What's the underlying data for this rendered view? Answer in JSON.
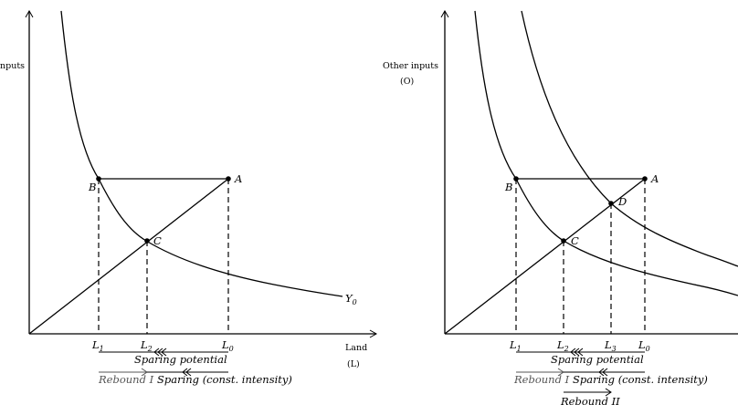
{
  "left_panel": {
    "y_axis_label_partial": "nputs",
    "x_axis_label": "Land",
    "x_axis_symbol": "(L)",
    "curve_label": "Y",
    "curve_label_sub": "0",
    "points": {
      "A": "A",
      "B": "B",
      "C": "C"
    },
    "ticks": [
      {
        "base": "L",
        "sub": "1"
      },
      {
        "base": "L",
        "sub": "2"
      },
      {
        "base": "L",
        "sub": "0"
      }
    ],
    "sparing_potential": "Sparing potential",
    "rebound_1": "Rebound I",
    "sparing_const": "Sparing (const. intensity)"
  },
  "right_panel": {
    "y_axis_label": "Other inputs",
    "y_axis_symbol": "(O)",
    "points": {
      "A": "A",
      "B": "B",
      "C": "C",
      "D": "D"
    },
    "ticks": [
      {
        "base": "L",
        "sub": "1"
      },
      {
        "base": "L",
        "sub": "2"
      },
      {
        "base": "L",
        "sub": "3"
      },
      {
        "base": "L",
        "sub": "0"
      }
    ],
    "sparing_potential": "Sparing potential",
    "rebound_1": "Rebound I",
    "sparing_const": "Sparing (const. intensity)",
    "rebound_2": "Rebound II"
  }
}
